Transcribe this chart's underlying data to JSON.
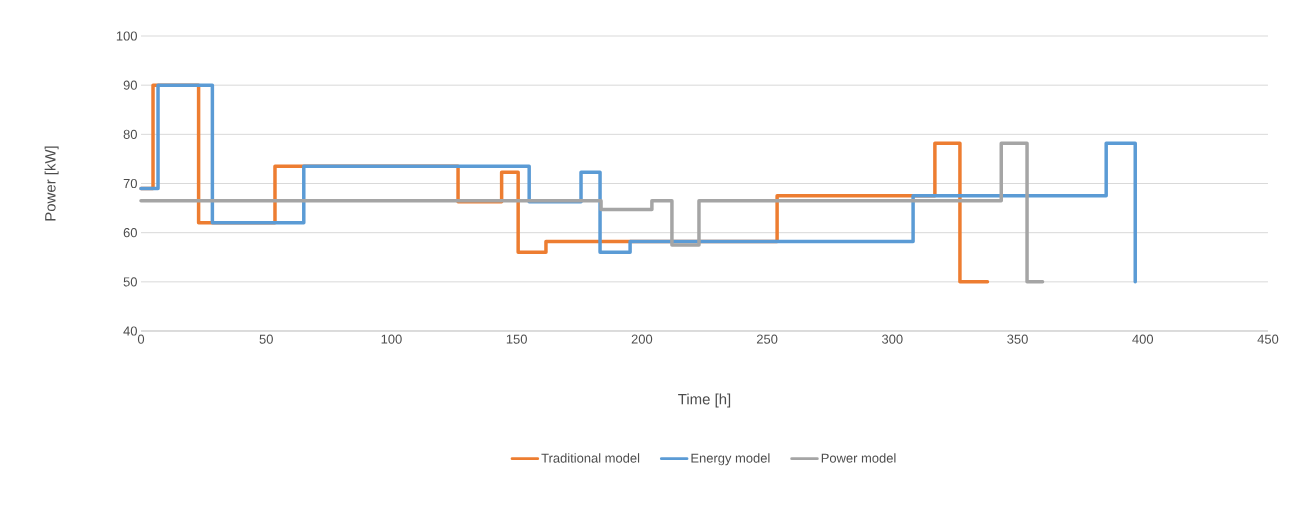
{
  "chart_data": {
    "type": "step",
    "xlabel": "Time [h]",
    "ylabel": "Power [kW]",
    "series": [
      {
        "name": "Traditional model",
        "color": "#ed7d31",
        "x": [
          0,
          4.8,
          23,
          53.5,
          126.6,
          144,
          150.6,
          161.7,
          254,
          317,
          327,
          338
        ],
        "values": [
          69,
          90,
          62,
          73.5,
          66.3,
          72.3,
          56,
          58.2,
          67.5,
          78.2,
          50,
          50
        ]
      },
      {
        "name": "Energy model",
        "color": "#5b9bd5",
        "x": [
          0,
          6.8,
          28.5,
          65,
          155,
          175.7,
          183.3,
          195.3,
          308.3,
          385.4,
          397
        ],
        "values": [
          69,
          90,
          62,
          73.5,
          66.3,
          72.3,
          56,
          58.2,
          67.5,
          78.2,
          50
        ]
      },
      {
        "name": "Power model",
        "color": "#a5a5a5",
        "x": [
          0,
          183.7,
          204,
          212,
          222.8,
          343.5,
          353.8,
          360
        ],
        "values": [
          66.5,
          64.7,
          66.5,
          57.5,
          66.5,
          78.2,
          50,
          50
        ]
      }
    ],
    "xlim": [
      0,
      450
    ],
    "xticks": [
      0,
      50,
      100,
      150,
      200,
      250,
      300,
      350,
      400,
      450
    ],
    "ylim": [
      40,
      100
    ],
    "yticks": [
      40,
      50,
      60,
      70,
      80,
      90,
      100
    ],
    "grid": "y",
    "legend": "bottom",
    "marker": "none",
    "line_style": "solid"
  }
}
